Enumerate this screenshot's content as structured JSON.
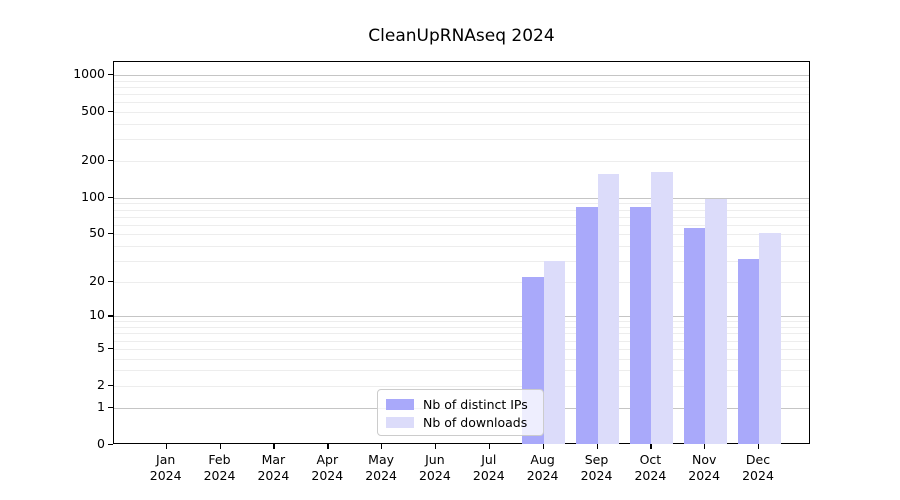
{
  "chart_data": {
    "type": "bar",
    "title": "CleanUpRNAseq 2024",
    "categories": [
      "Jan 2024",
      "Feb 2024",
      "Mar 2024",
      "Apr 2024",
      "May 2024",
      "Jun 2024",
      "Jul 2024",
      "Aug 2024",
      "Sep 2024",
      "Oct 2024",
      "Nov 2024",
      "Dec 2024"
    ],
    "series": [
      {
        "name": "Nb of distinct IPs",
        "color": "#a9a9fa",
        "values": [
          0,
          0,
          0,
          0,
          0,
          0,
          0,
          22,
          84,
          84,
          56,
          31
        ]
      },
      {
        "name": "Nb of downloads",
        "color": "#dcdcfa",
        "values": [
          0,
          0,
          0,
          0,
          0,
          0,
          0,
          30,
          155,
          163,
          98,
          51
        ]
      }
    ],
    "xlabel": "",
    "ylabel": "",
    "yscale": "log1p",
    "ylim": [
      0,
      1270
    ],
    "ytick_labels": [
      "0",
      "1",
      "2",
      "5",
      "10",
      "20",
      "50",
      "100",
      "200",
      "500",
      "1000"
    ],
    "yticks": [
      0,
      1,
      2,
      5,
      10,
      20,
      50,
      100,
      200,
      500,
      1000
    ],
    "grid": "horizontal, log decades major + sub-decade minor",
    "legend_position": "lower center"
  }
}
